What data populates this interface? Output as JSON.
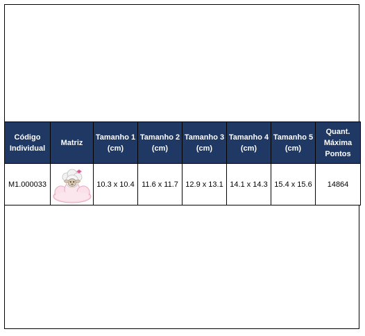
{
  "table": {
    "headers": [
      [
        "Código",
        "Individual"
      ],
      [
        "Matriz"
      ],
      [
        "Tamanho 1",
        "(cm)"
      ],
      [
        "Tamanho 2",
        "(cm)"
      ],
      [
        "Tamanho 3",
        "(cm)"
      ],
      [
        "Tamanho 4",
        "(cm)"
      ],
      [
        "Tamanho 5",
        "(cm)"
      ],
      [
        "Quant.",
        "Máxima",
        "Pontos"
      ]
    ],
    "row": {
      "code": "M1.000033",
      "image_icon": "sheep-on-cloud-icon",
      "size1": "10.3 x 10.4",
      "size2": "11.6 x 11.7",
      "size3": "12.9 x 13.1",
      "size4": "14.1 x 14.3",
      "size5": "15.4 x 15.6",
      "points": "14864"
    }
  }
}
